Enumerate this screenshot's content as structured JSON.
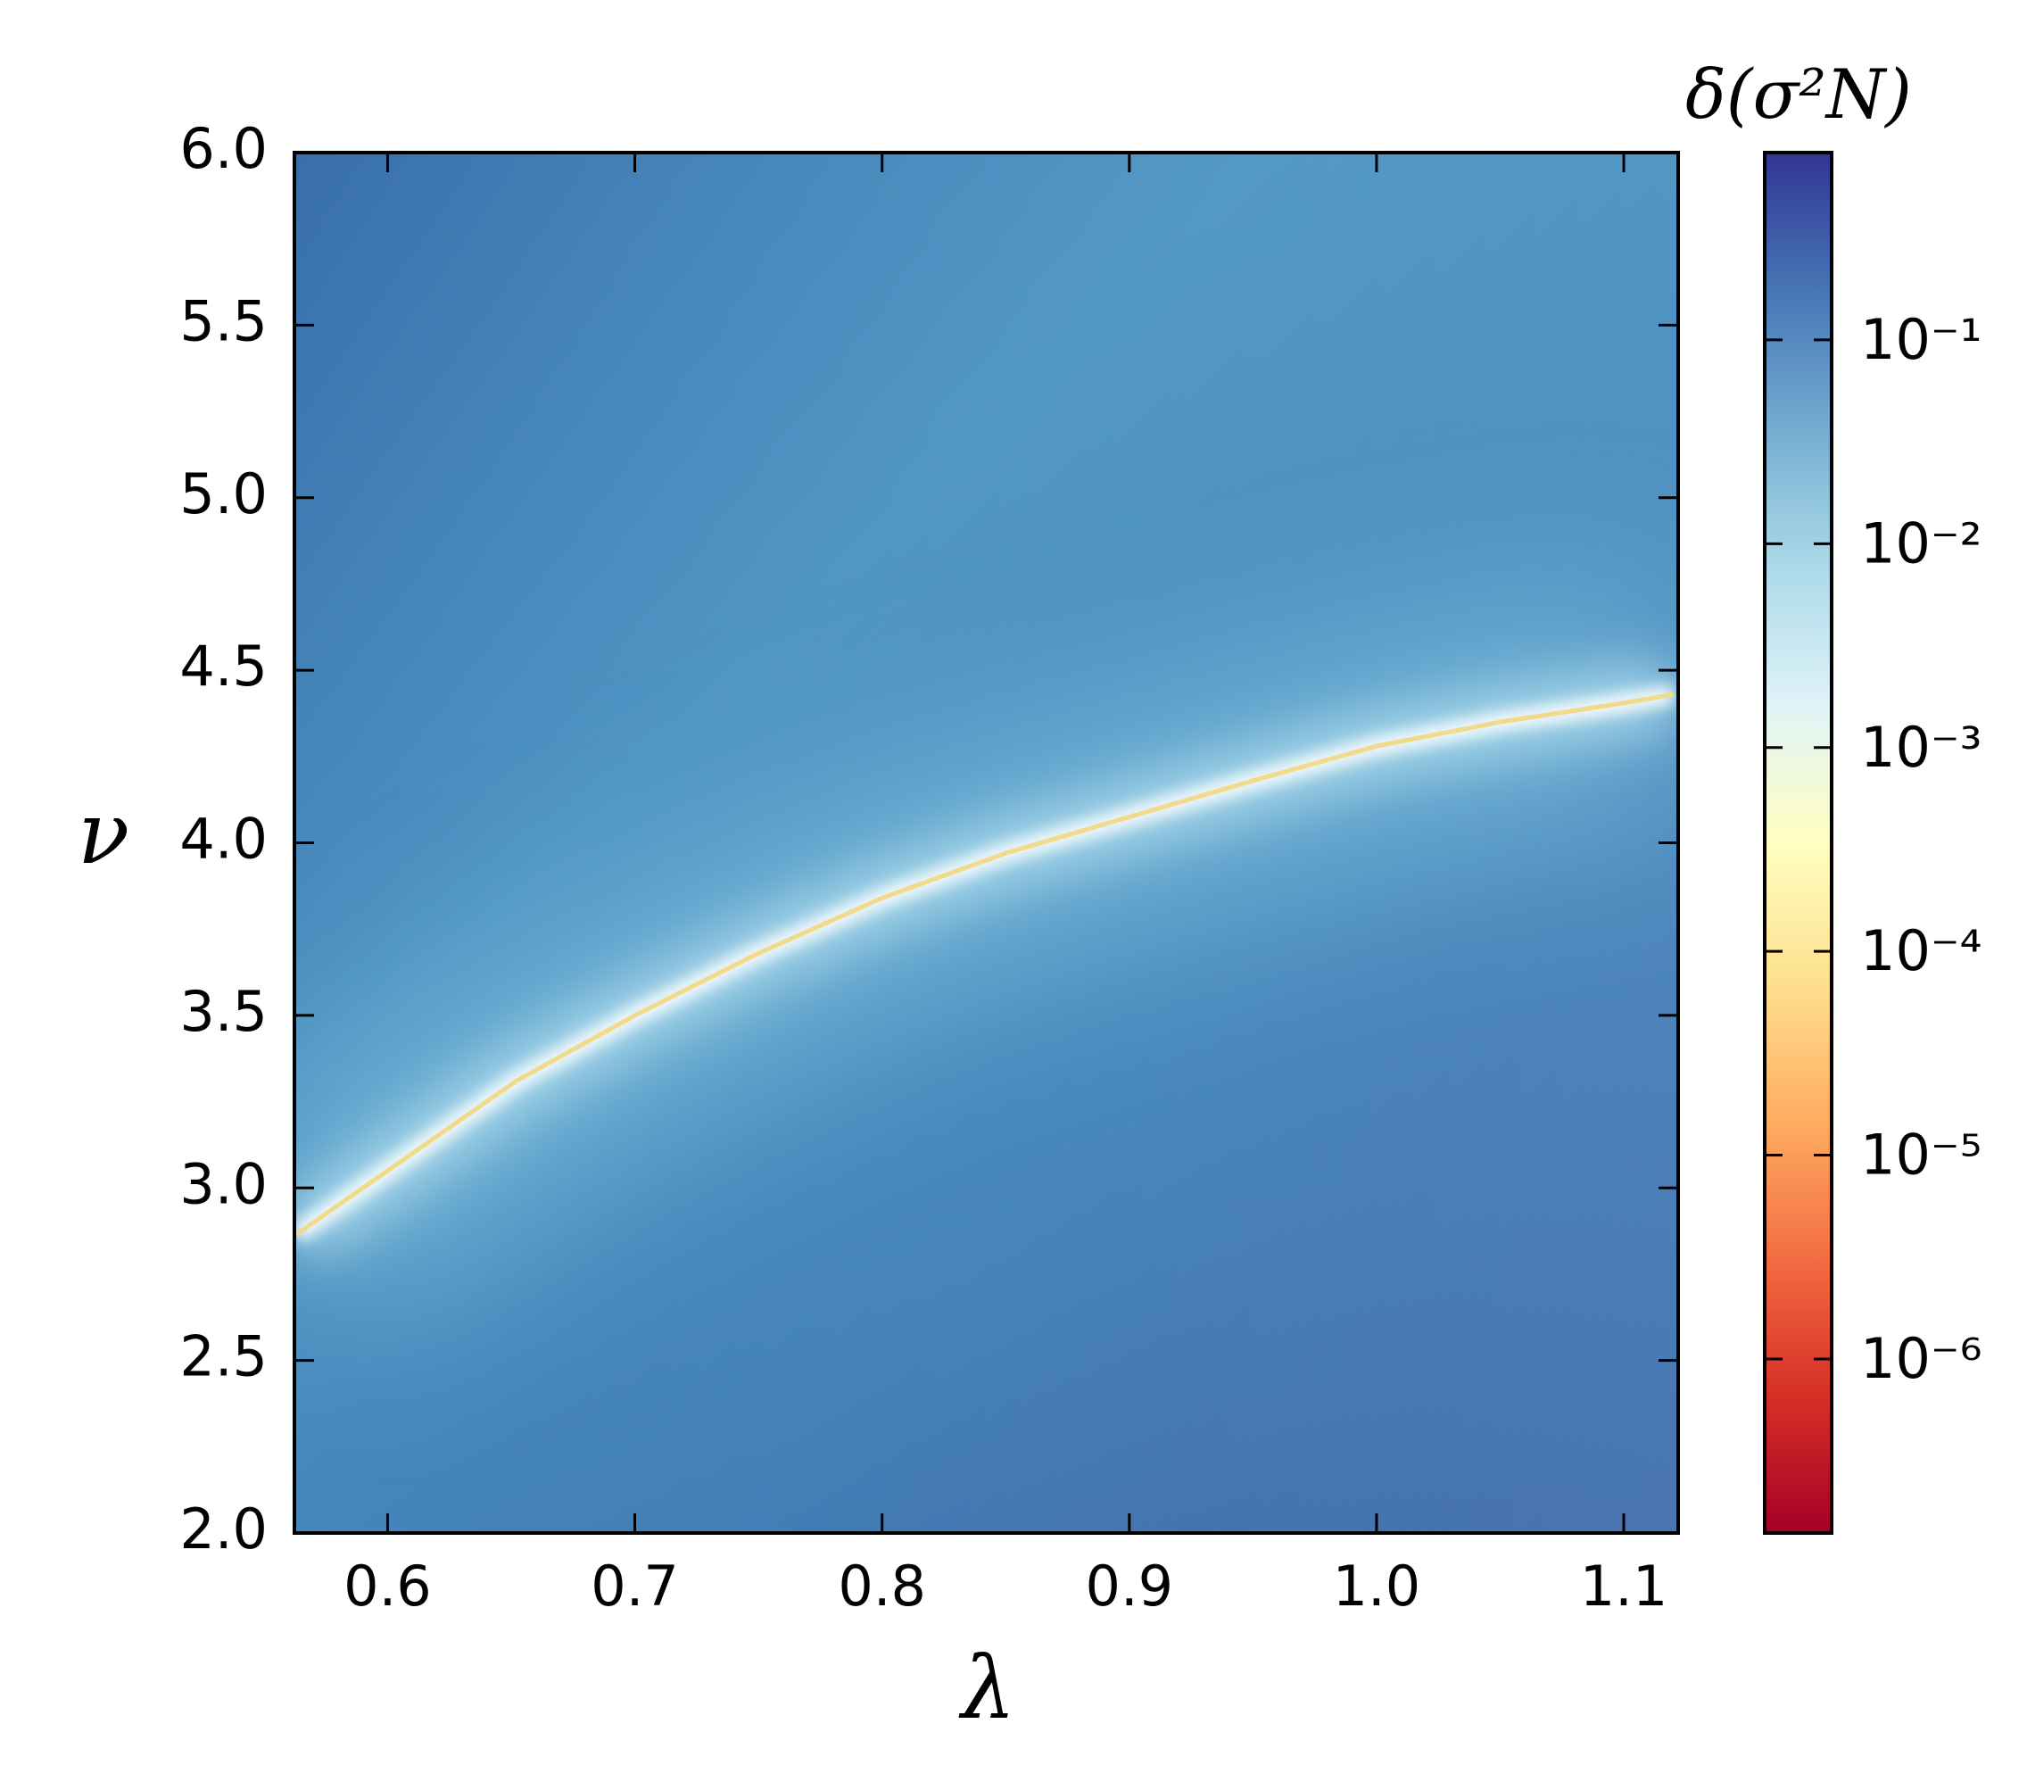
{
  "chart_data": {
    "type": "heatmap",
    "x_label": "λ",
    "y_label": "ν",
    "colorbar_label": "δ(σ²N)",
    "xlim": [
      0.5623,
      1.122
    ],
    "ylim": [
      2,
      6
    ],
    "xticks": [
      0.6,
      0.7,
      0.8,
      0.9,
      {
        "value": 1,
        "label": "1.0"
      },
      1.1
    ],
    "yticks": [
      {
        "value": 2,
        "label": "2.0"
      },
      2.5,
      {
        "value": 3,
        "label": "3.0"
      },
      3.5,
      {
        "value": 4,
        "label": "4.0"
      },
      4.5,
      {
        "value": 5,
        "label": "5.0"
      },
      5.5,
      {
        "value": 6,
        "label": "6.0"
      }
    ],
    "x": [
      0.563,
      0.6,
      0.652,
      0.7,
      0.75,
      0.8,
      0.85,
      0.9,
      0.95,
      1.0,
      1.05,
      1.1,
      1.12
    ],
    "values": [
      2.865,
      3.05,
      3.31,
      3.5,
      3.68,
      3.84,
      3.97,
      4.075,
      4.18,
      4.28,
      4.35,
      4.405,
      4.43
    ],
    "color": "#f3d98a",
    "colorbar_log": true,
    "clim": [
      1.4e-07,
      0.83
    ],
    "colorbar_ticks": [
      {
        "value": 1e-06,
        "label": "10⁻⁶"
      },
      {
        "value": 1e-05,
        "label": "10⁻⁵"
      },
      {
        "value": 0.0001,
        "label": "10⁻⁴"
      },
      {
        "value": 0.001,
        "label": "10⁻³"
      },
      {
        "value": 0.01,
        "label": "10⁻²"
      },
      {
        "value": 0.1,
        "label": "10⁻¹"
      }
    ],
    "colormap": [
      "#a50026",
      "#d73027",
      "#f46d43",
      "#fdae61",
      "#fee090",
      "#ffffbf",
      "#e0f3f8",
      "#abd9e9",
      "#74add1",
      "#4575b4",
      "#313695"
    ]
  }
}
